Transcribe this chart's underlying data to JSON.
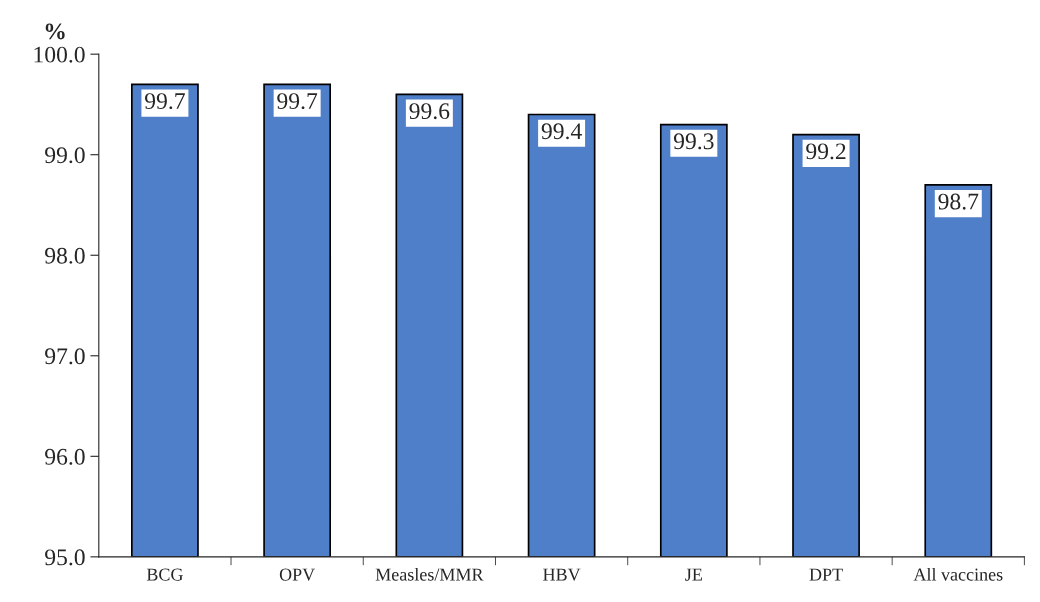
{
  "chart_data": {
    "type": "bar",
    "ylabel": "%",
    "categories": [
      "BCG",
      "OPV",
      "Measles/MMR",
      "HBV",
      "JE",
      "DPT",
      "All vaccines"
    ],
    "values": [
      99.7,
      99.7,
      99.6,
      99.4,
      99.3,
      99.2,
      98.7
    ],
    "color": "#4f7fc8",
    "ylim": [
      95,
      100
    ],
    "yticks": [
      {
        "value": 95,
        "label": "95.0"
      },
      {
        "value": 96,
        "label": "96.0"
      },
      {
        "value": 97,
        "label": "97.0"
      },
      {
        "value": 98,
        "label": "98.0"
      },
      {
        "value": 99,
        "label": "99.0"
      },
      {
        "value": 100,
        "label": "100.0"
      }
    ],
    "data_labels": true,
    "grid": false,
    "legend": false
  }
}
